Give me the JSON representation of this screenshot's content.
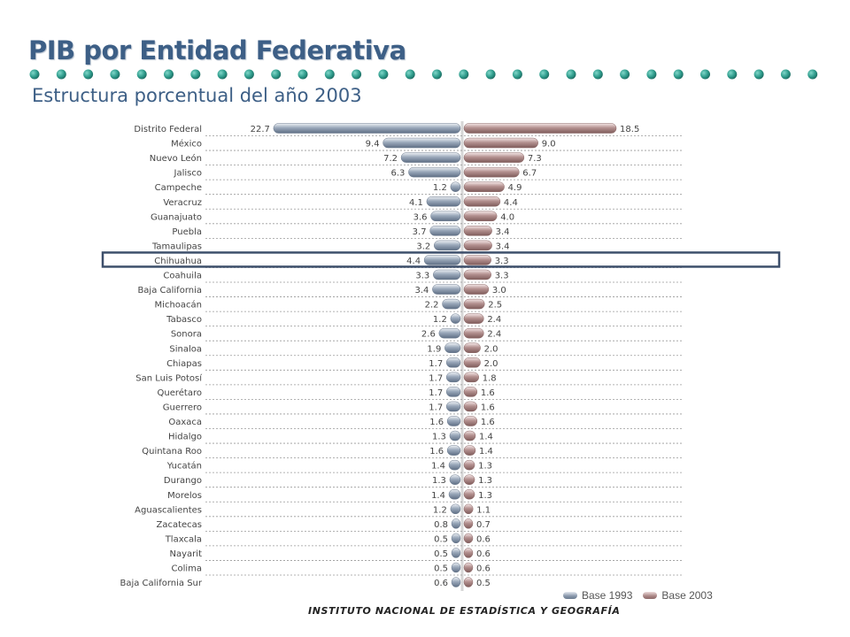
{
  "title": "PIB por Entidad Federativa",
  "subtitle": "Estructura porcentual del año 2003",
  "footer": "INSTITUTO NACIONAL DE ESTADÍSTICA Y GEOGRAFÍA",
  "colors": {
    "title": "#3d5f86",
    "dots": "#2f9c8c",
    "base_1993": "#8796aa",
    "base_2003": "#a98584",
    "highlight_box": "#3d4f6b"
  },
  "highlighted_category": "Chihuahua",
  "chart_data": {
    "type": "bar",
    "orientation": "horizontal-butterfly",
    "categories": [
      "Distrito Federal",
      "México",
      "Nuevo León",
      "Jalisco",
      "Campeche",
      "Veracruz",
      "Guanajuato",
      "Puebla",
      "Tamaulipas",
      "Chihuahua",
      "Coahuila",
      "Baja California",
      "Michoacán",
      "Tabasco",
      "Sonora",
      "Sinaloa",
      "Chiapas",
      "San Luis Potosí",
      "Querétaro",
      "Guerrero",
      "Oaxaca",
      "Hidalgo",
      "Quintana Roo",
      "Yucatán",
      "Durango",
      "Morelos",
      "Aguascalientes",
      "Zacatecas",
      "Tlaxcala",
      "Nayarit",
      "Colima",
      "Baja California Sur"
    ],
    "series": [
      {
        "name": "Base 1993",
        "side": "left",
        "values": [
          22.7,
          9.4,
          7.2,
          6.3,
          1.2,
          4.1,
          3.6,
          3.7,
          3.2,
          4.4,
          3.3,
          3.4,
          2.2,
          1.2,
          2.6,
          1.9,
          1.7,
          1.7,
          1.7,
          1.7,
          1.6,
          1.3,
          1.6,
          1.4,
          1.3,
          1.4,
          1.2,
          0.8,
          0.5,
          0.5,
          0.5,
          0.6
        ],
        "labels": [
          "22.7",
          "9.4",
          "7.2",
          "6.3",
          "1.2",
          "4.1",
          "3.6",
          "3.7",
          "3.2",
          "4.4",
          "3.3",
          "3.4",
          "2.2",
          "1.2",
          "2.6",
          "1.9",
          "1.7",
          "1.7",
          "1.7",
          "1.7",
          "1.6",
          "1.3",
          "1.6",
          "1.4",
          "1.3",
          "1.4",
          "1.2",
          "0.8",
          "0.5",
          "0.5",
          "0.5",
          "0.6"
        ]
      },
      {
        "name": "Base 2003",
        "side": "right",
        "values": [
          18.5,
          9.0,
          7.3,
          6.7,
          4.9,
          4.4,
          4.0,
          3.4,
          3.4,
          3.3,
          3.3,
          3.0,
          2.5,
          2.4,
          2.4,
          2.0,
          2.0,
          1.8,
          1.6,
          1.6,
          1.6,
          1.4,
          1.4,
          1.3,
          1.3,
          1.3,
          1.1,
          0.7,
          0.6,
          0.6,
          0.6,
          0.5
        ],
        "labels": [
          "18.5",
          "9.0",
          "7.3",
          "6.7",
          "4.9",
          "4.4",
          "4.0",
          "3.4",
          "3.4",
          "3.3",
          "3.3",
          "3.0",
          "2.5",
          "2.4",
          "2.4",
          "2.0",
          "2.0",
          "1.8",
          "1.6",
          "1.6",
          "1.6",
          "1.4",
          "1.4",
          "1.3",
          "1.3",
          "1.3",
          "1.1",
          "0.7",
          "0.6",
          "0.6",
          "0.6",
          "0.5"
        ]
      }
    ],
    "legend_position": "bottom-right",
    "grid": "dashed row separators"
  }
}
